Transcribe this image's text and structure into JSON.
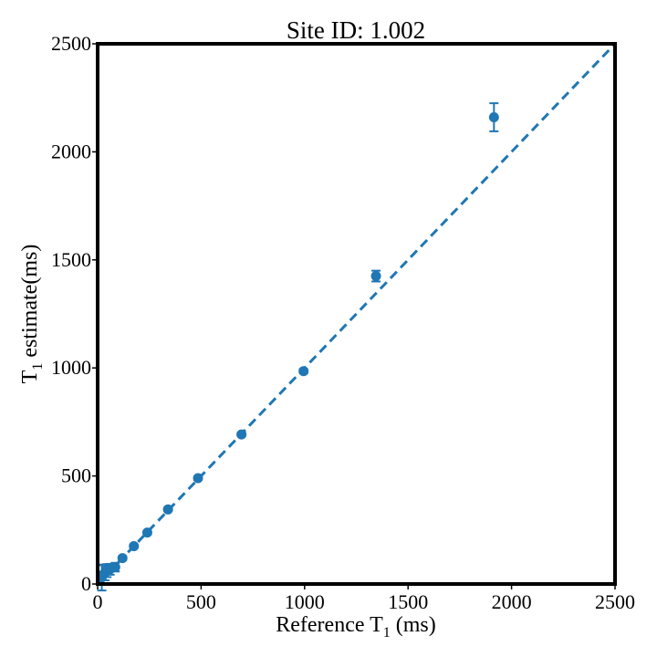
{
  "chart_data": {
    "type": "scatter",
    "title": "Site ID: 1.002",
    "xlabel": {
      "main": "Reference T",
      "sub": "1",
      "rest": " (ms)"
    },
    "ylabel": {
      "main": "T",
      "sub": "1",
      "rest": " estimate(ms)"
    },
    "xlim": [
      0,
      2500
    ],
    "ylim": [
      0,
      2500
    ],
    "xticks": [
      0,
      500,
      1000,
      1500,
      2000,
      2500
    ],
    "yticks": [
      0,
      500,
      1000,
      1500,
      2000,
      2500
    ],
    "grid": false,
    "color": "#1f77b4",
    "identity_line": {
      "x": [
        0,
        2500
      ],
      "y": [
        0,
        2500
      ],
      "style": "dashed"
    },
    "points": [
      {
        "x": 20,
        "y": 30,
        "err": 60
      },
      {
        "x": 25,
        "y": 42,
        "err": 45
      },
      {
        "x": 35,
        "y": 52,
        "err": 35
      },
      {
        "x": 45,
        "y": 62,
        "err": 30
      },
      {
        "x": 60,
        "y": 68,
        "err": 25
      },
      {
        "x": 85,
        "y": 78,
        "err": 20
      },
      {
        "x": 120,
        "y": 120,
        "err": 8
      },
      {
        "x": 175,
        "y": 175,
        "err": 8
      },
      {
        "x": 240,
        "y": 238,
        "err": 8
      },
      {
        "x": 340,
        "y": 345,
        "err": 8
      },
      {
        "x": 485,
        "y": 490,
        "err": 8
      },
      {
        "x": 695,
        "y": 692,
        "err": 8
      },
      {
        "x": 995,
        "y": 985,
        "err": 10
      },
      {
        "x": 1345,
        "y": 1425,
        "err": 25
      },
      {
        "x": 1915,
        "y": 2160,
        "err": 65
      }
    ]
  }
}
